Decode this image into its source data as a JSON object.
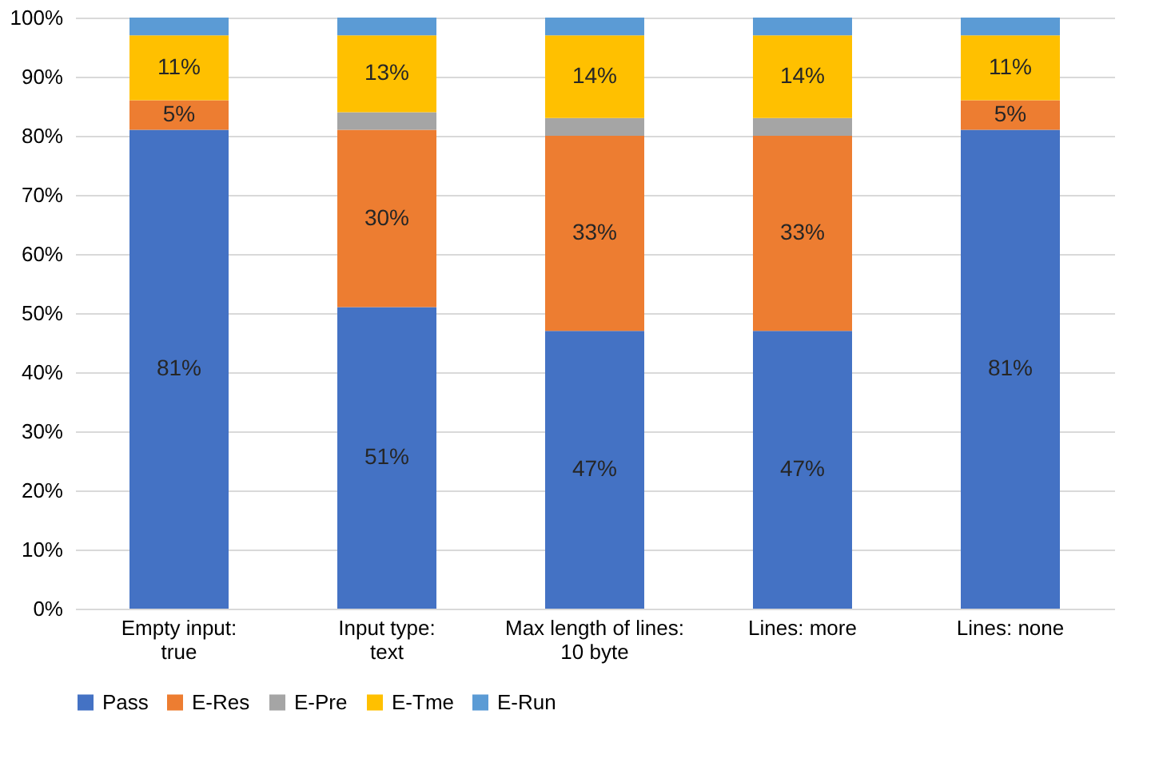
{
  "chart_data": {
    "type": "bar",
    "stacked": true,
    "categories": [
      "Empty input:\ntrue",
      "Input type:\ntext",
      "Max length of lines:\n10 byte",
      "Lines: more",
      "Lines: none"
    ],
    "series": [
      {
        "name": "Pass",
        "color": "#4472c4",
        "values": [
          81,
          51,
          47,
          47,
          81
        ],
        "value_labels": [
          "81%",
          "51%",
          "47%",
          "47%",
          "81%"
        ]
      },
      {
        "name": "E-Res",
        "color": "#ed7d31",
        "values": [
          5,
          30,
          33,
          33,
          5
        ],
        "value_labels": [
          "5%",
          "30%",
          "33%",
          "33%",
          "5%"
        ]
      },
      {
        "name": "E-Pre",
        "color": "#a5a5a5",
        "values": [
          0,
          3,
          3,
          3,
          0
        ],
        "value_labels": [
          null,
          null,
          null,
          null,
          null
        ]
      },
      {
        "name": "E-Tme",
        "color": "#ffc000",
        "values": [
          11,
          13,
          14,
          14,
          11
        ],
        "value_labels": [
          "11%",
          "13%",
          "14%",
          "14%",
          "11%"
        ]
      },
      {
        "name": "E-Run",
        "color": "#5b9bd5",
        "values": [
          3,
          3,
          3,
          3,
          3
        ],
        "value_labels": [
          null,
          null,
          null,
          null,
          null
        ]
      }
    ],
    "ylim": [
      0,
      100
    ],
    "yticks": [
      {
        "value": 0,
        "label": "0%"
      },
      {
        "value": 10,
        "label": "10%"
      },
      {
        "value": 20,
        "label": "20%"
      },
      {
        "value": 30,
        "label": "30%"
      },
      {
        "value": 40,
        "label": "40%"
      },
      {
        "value": 50,
        "label": "50%"
      },
      {
        "value": 60,
        "label": "60%"
      },
      {
        "value": 70,
        "label": "70%"
      },
      {
        "value": 80,
        "label": "80%"
      },
      {
        "value": 90,
        "label": "90%"
      },
      {
        "value": 100,
        "label": "100%"
      }
    ],
    "grid": "y",
    "legend": "bottom"
  }
}
